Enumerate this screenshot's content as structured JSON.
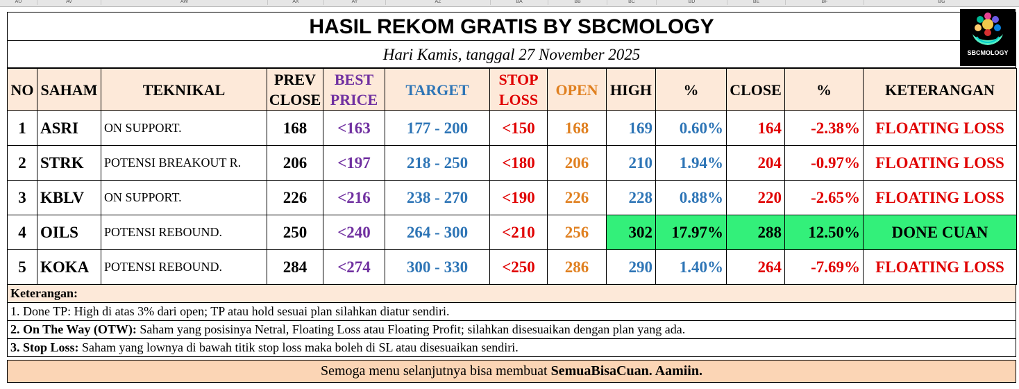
{
  "column_headers": [
    "AU",
    "AV",
    "AW",
    "AX",
    "AY",
    "AZ",
    "BA",
    "BB",
    "BC",
    "BD",
    "BE",
    "BF",
    "BG"
  ],
  "title": "HASIL REKOM GRATIS BY SBCMOLOGY",
  "subtitle": "Hari Kamis, tanggal 27 November 2025",
  "logo_text": "SBCMOLOGY",
  "headers": {
    "no": "NO",
    "saham": "SAHAM",
    "teknikal": "TEKNIKAL",
    "prev_close": "PREV CLOSE",
    "best_price": "BEST PRICE",
    "target": "TARGET",
    "stop_loss": "STOP LOSS",
    "open": "OPEN",
    "high": "HIGH",
    "pct_high": "%",
    "close": "CLOSE",
    "pct_close": "%",
    "keterangan": "KETERANGAN"
  },
  "rows": [
    {
      "no": "1",
      "saham": "ASRI",
      "teknikal": "ON SUPPORT.",
      "prev_close": "168",
      "best_price": "<163",
      "target": "177 - 200",
      "stop_loss": "<150",
      "open": "168",
      "high": "169",
      "pct_high": "0.60%",
      "close": "164",
      "pct_close": "-2.38%",
      "keterangan": "FLOATING LOSS",
      "highlight": false
    },
    {
      "no": "2",
      "saham": "STRK",
      "teknikal": "POTENSI BREAKOUT R.",
      "prev_close": "206",
      "best_price": "<197",
      "target": "218 - 250",
      "stop_loss": "<180",
      "open": "206",
      "high": "210",
      "pct_high": "1.94%",
      "close": "204",
      "pct_close": "-0.97%",
      "keterangan": "FLOATING LOSS",
      "highlight": false
    },
    {
      "no": "3",
      "saham": "KBLV",
      "teknikal": "ON SUPPORT.",
      "prev_close": "226",
      "best_price": "<216",
      "target": "238 - 270",
      "stop_loss": "<190",
      "open": "226",
      "high": "228",
      "pct_high": "0.88%",
      "close": "220",
      "pct_close": "-2.65%",
      "keterangan": "FLOATING LOSS",
      "highlight": false
    },
    {
      "no": "4",
      "saham": "OILS",
      "teknikal": "POTENSI REBOUND.",
      "prev_close": "250",
      "best_price": "<240",
      "target": "264 - 300",
      "stop_loss": "<210",
      "open": "256",
      "high": "302",
      "pct_high": "17.97%",
      "close": "288",
      "pct_close": "12.50%",
      "keterangan": "DONE CUAN",
      "highlight": true
    },
    {
      "no": "5",
      "saham": "KOKA",
      "teknikal": "POTENSI REBOUND.",
      "prev_close": "284",
      "best_price": "<274",
      "target": "300 - 330",
      "stop_loss": "<250",
      "open": "286",
      "high": "290",
      "pct_high": "1.40%",
      "close": "264",
      "pct_close": "-7.69%",
      "keterangan": "FLOATING LOSS",
      "highlight": false
    }
  ],
  "notes": {
    "heading": "Keterangan:",
    "line1": "1. Done TP: High di atas 3% dari open; TP atau hold sesuai plan silahkan diatur sendiri.",
    "line2_bold": "2. On The Way (OTW):",
    "line2_rest": " Saham yang posisinya Netral, Floating Loss atau Floating Profit; silahkan disesuaikan dengan plan yang ada.",
    "line3_bold": "3. Stop Loss:",
    "line3_rest": " Saham yang lownya di bawah titik stop loss maka boleh di SL atau disesuaikan sendiri."
  },
  "footer": {
    "text": "Semoga menu selanjutnya bisa membuat ",
    "bold": "SemuaBisaCuan. Aamiin."
  },
  "colors": {
    "header_bg": "#fde9d9",
    "highlight_green": "#33f07a",
    "footer_bg": "#fbd5b5",
    "purple": "#7030a0",
    "blue": "#2e75b6",
    "red": "#e00000",
    "orange": "#e08020"
  }
}
